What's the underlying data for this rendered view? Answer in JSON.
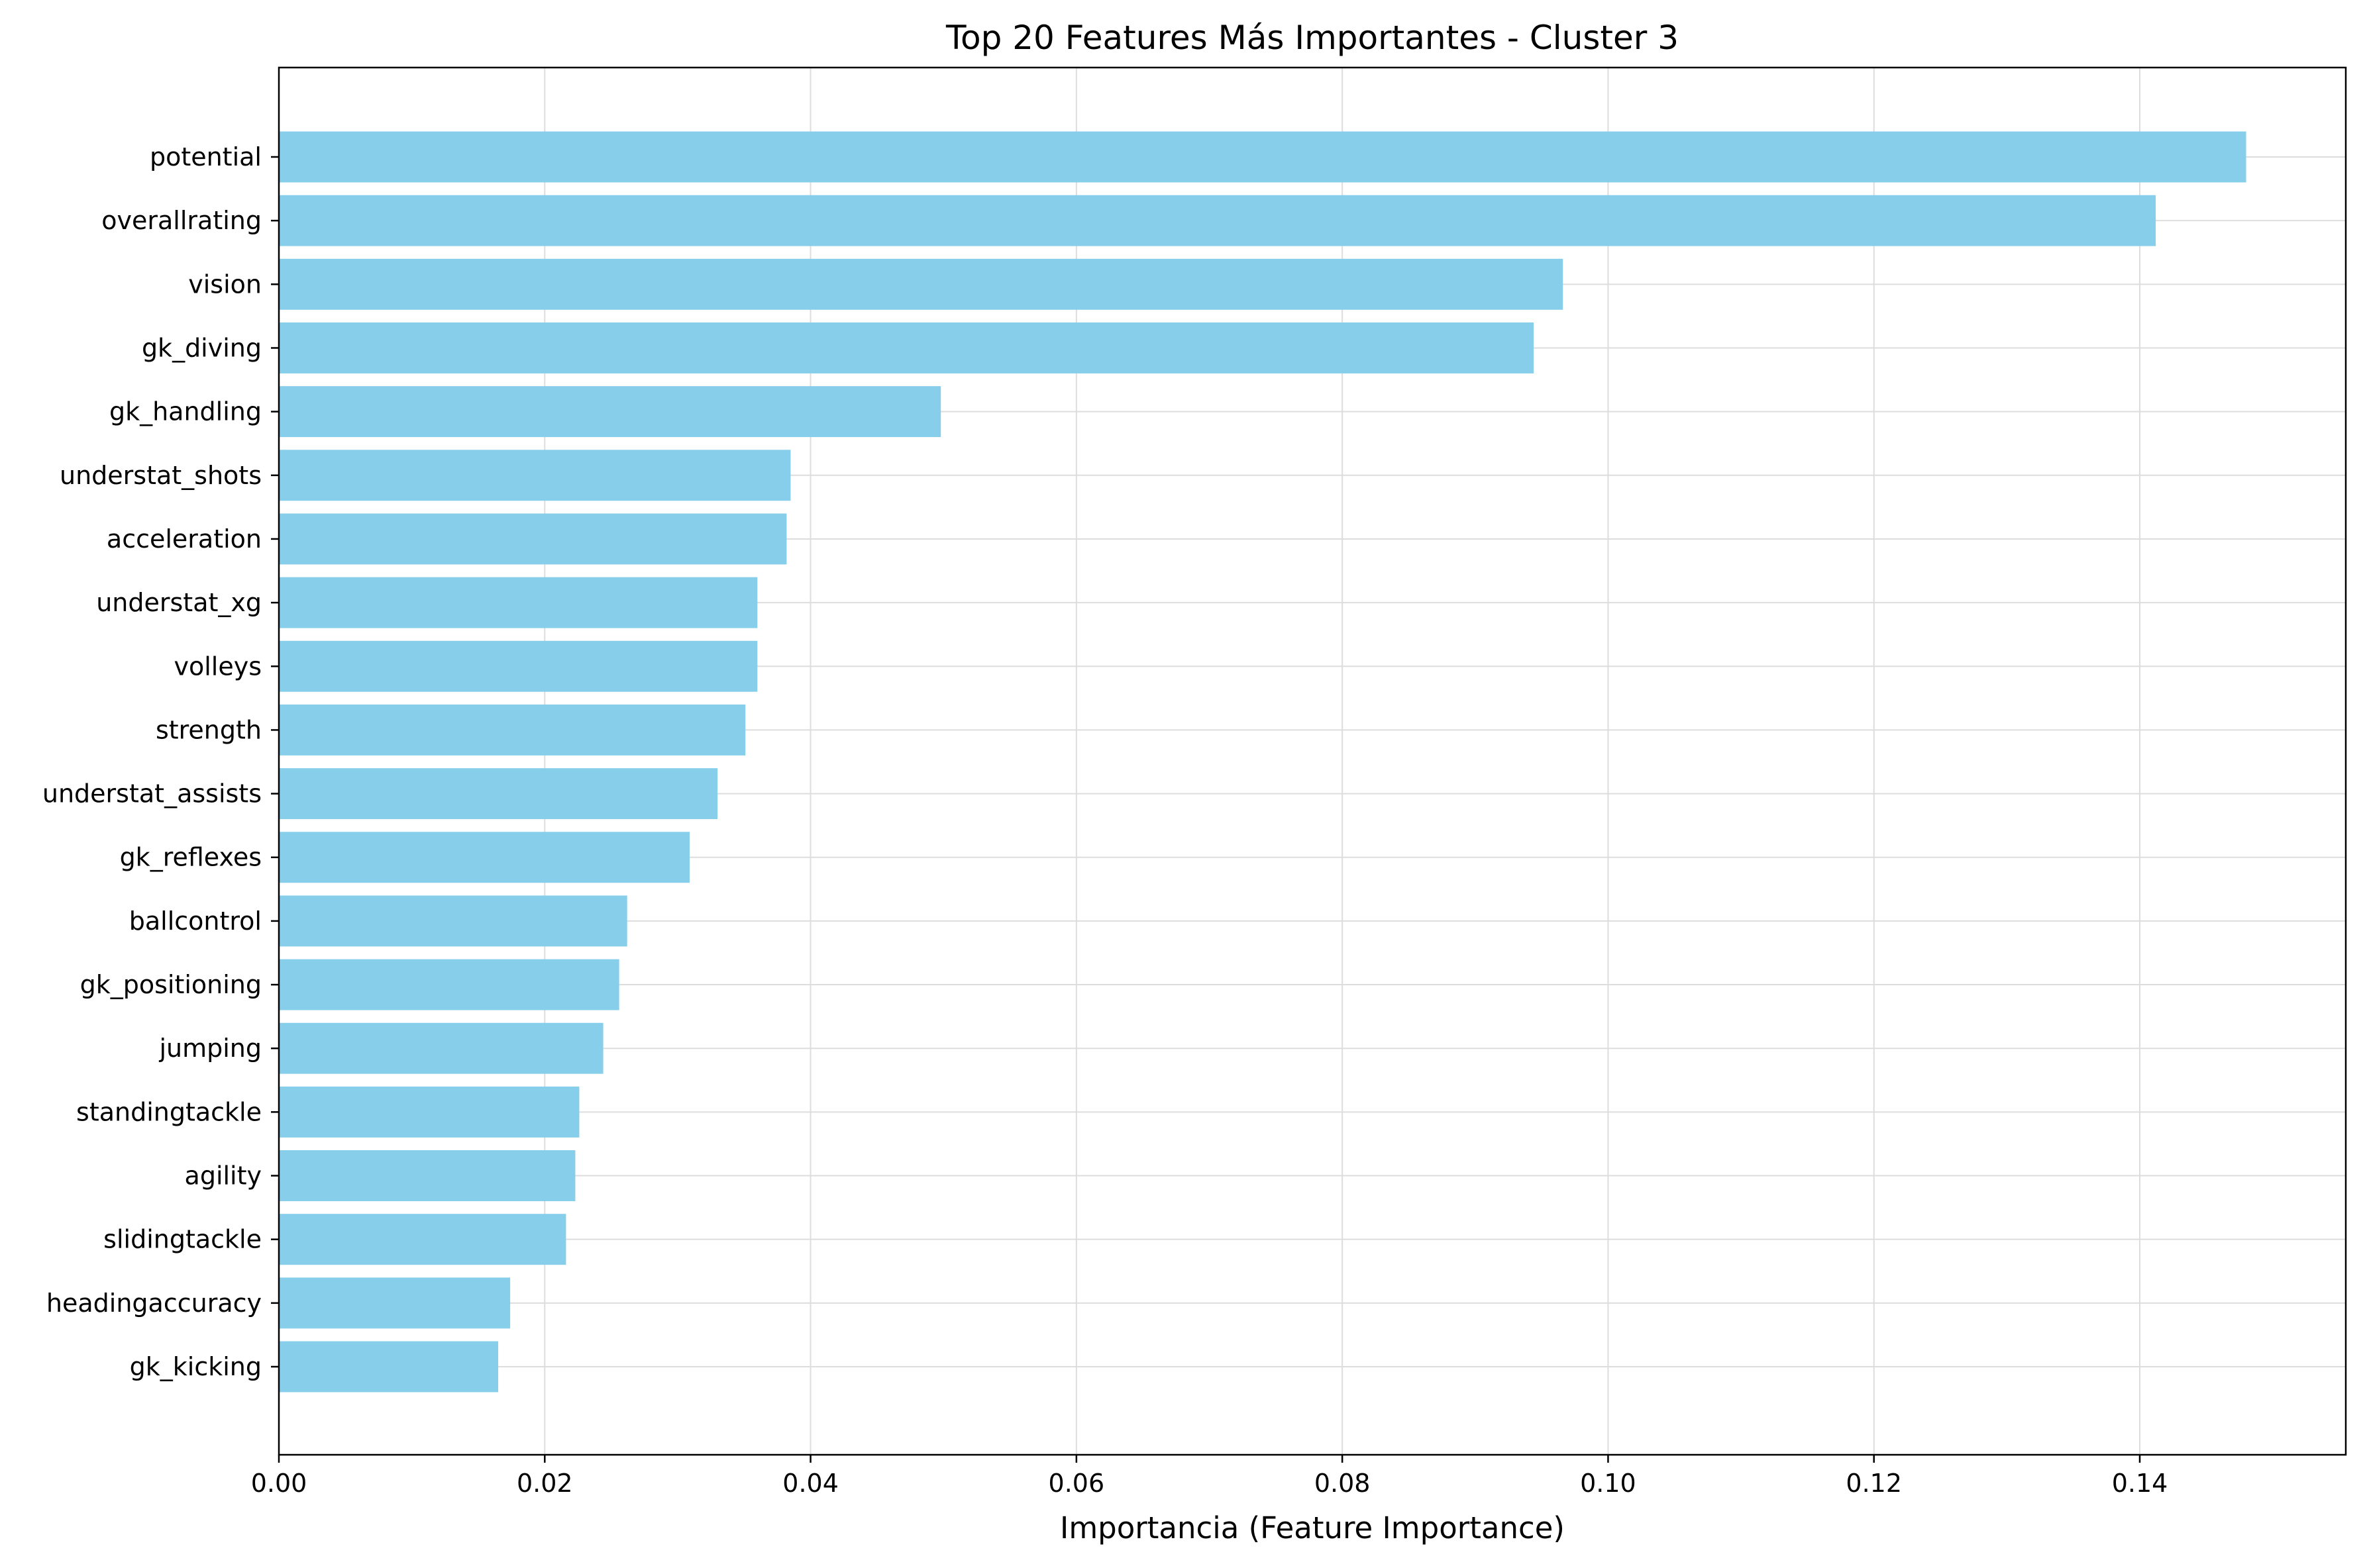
{
  "chart_data": {
    "type": "bar",
    "orientation": "horizontal",
    "title": "Top 20 Features Más Importantes - Cluster 3",
    "xlabel": "Importancia (Feature Importance)",
    "ylabel": "",
    "xlim": [
      0,
      0.1555
    ],
    "x_ticks": [
      "0.00",
      "0.02",
      "0.04",
      "0.06",
      "0.08",
      "0.10",
      "0.12",
      "0.14"
    ],
    "grid": true,
    "bar_color": "#87ceeb",
    "categories": [
      "potential",
      "overallrating",
      "vision",
      "gk_diving",
      "gk_handling",
      "understat_shots",
      "acceleration",
      "understat_xg",
      "volleys",
      "strength",
      "understat_assists",
      "gk_reflexes",
      "ballcontrol",
      "gk_positioning",
      "jumping",
      "standingtackle",
      "agility",
      "slidingtackle",
      "headingaccuracy",
      "gk_kicking"
    ],
    "values": [
      0.148,
      0.1412,
      0.0966,
      0.0944,
      0.0498,
      0.0385,
      0.0382,
      0.036,
      0.036,
      0.0351,
      0.033,
      0.0309,
      0.0262,
      0.0256,
      0.0244,
      0.0226,
      0.0223,
      0.0216,
      0.0174,
      0.0165
    ]
  }
}
